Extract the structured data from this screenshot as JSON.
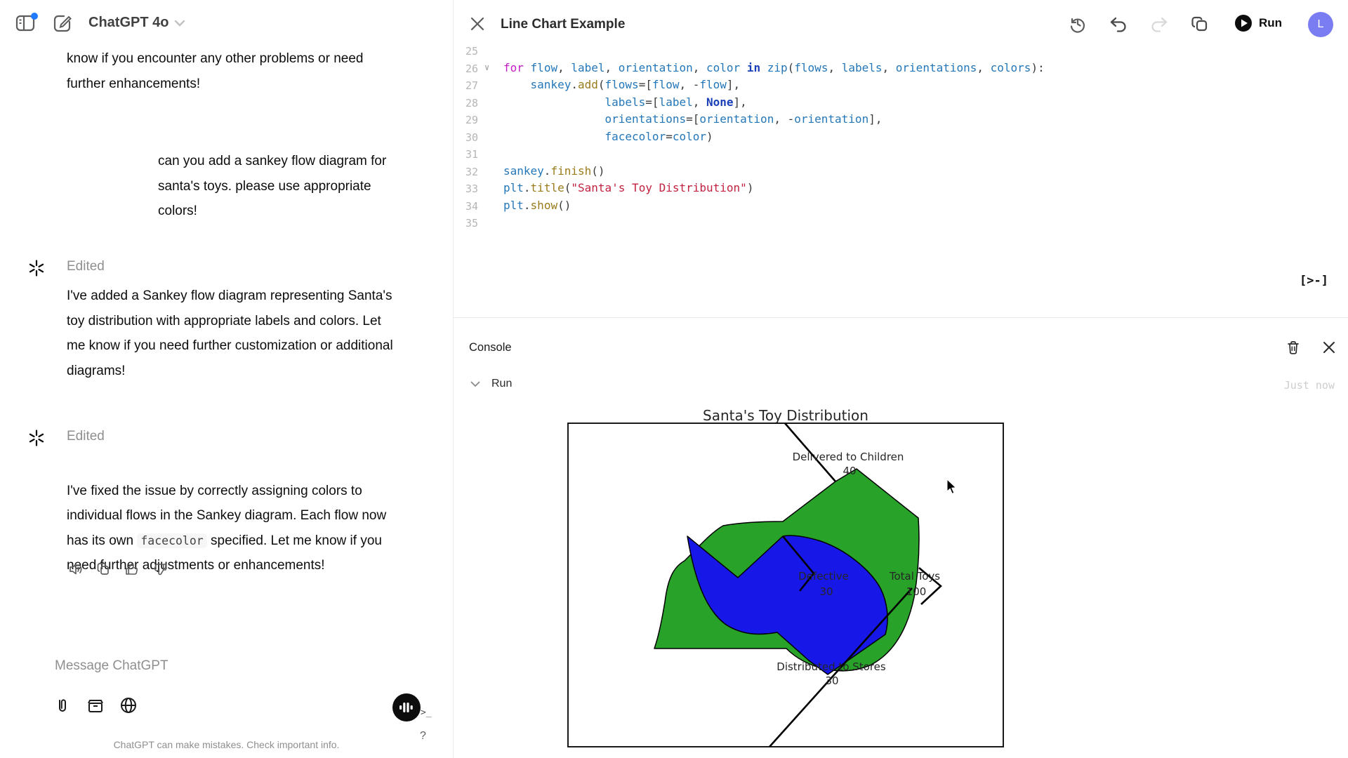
{
  "chat": {
    "header": {
      "model": "ChatGPT 4o"
    },
    "messages": {
      "m1": {
        "text": "know if you encounter any other problems or need\nfurther enhancements!"
      },
      "user": {
        "text": "can you add a sankey flow diagram for\nsanta's toys. please use appropriate\ncolors!"
      },
      "m2": {
        "edited": "Edited",
        "text": "I've added a Sankey flow diagram representing Santa's\ntoy distribution with appropriate labels and colors. Let\nme know if you need further customization or additional\ndiagrams!"
      },
      "m3": {
        "edited": "Edited",
        "pre": "I've fixed the issue by correctly assigning colors to\nindividual flows in the Sankey diagram. Each flow now\nhas its own ",
        "code": "facecolor",
        "post": " specified. Let me know if you\nneed further adjustments or enhancements!"
      }
    },
    "composer": {
      "placeholder": "Message ChatGPT"
    },
    "footer": {
      "disclaimer": "ChatGPT can make mistakes. Check important info.",
      "help": "?"
    }
  },
  "canvas": {
    "title": "Line Chart Example",
    "run_label": "Run",
    "console": {
      "title": "Console",
      "run_label": "Run",
      "timestamp": "Just now",
      "toggle_glyph": "[>-]"
    },
    "editor": {
      "lines": [
        {
          "n": 25,
          "fold": false,
          "tokens": []
        },
        {
          "n": 26,
          "fold": true,
          "tokens": [
            [
              "kw",
              "for"
            ],
            [
              "pl",
              " "
            ],
            [
              "id",
              "flow"
            ],
            [
              "pl",
              ", "
            ],
            [
              "id",
              "label"
            ],
            [
              "pl",
              ", "
            ],
            [
              "id",
              "orientation"
            ],
            [
              "pl",
              ", "
            ],
            [
              "id",
              "color"
            ],
            [
              "pl",
              " "
            ],
            [
              "kw2",
              "in"
            ],
            [
              "pl",
              " "
            ],
            [
              "id",
              "zip"
            ],
            [
              "pl",
              "("
            ],
            [
              "id",
              "flows"
            ],
            [
              "pl",
              ", "
            ],
            [
              "id",
              "labels"
            ],
            [
              "pl",
              ", "
            ],
            [
              "id",
              "orientations"
            ],
            [
              "pl",
              ", "
            ],
            [
              "id",
              "colors"
            ],
            [
              "pl",
              "):"
            ]
          ]
        },
        {
          "n": 27,
          "fold": false,
          "tokens": [
            [
              "pl",
              "    "
            ],
            [
              "id",
              "sankey"
            ],
            [
              "pl",
              "."
            ],
            [
              "fn",
              "add"
            ],
            [
              "pl",
              "("
            ],
            [
              "id",
              "flows"
            ],
            [
              "pl",
              "=["
            ],
            [
              "id",
              "flow"
            ],
            [
              "pl",
              ", -"
            ],
            [
              "id",
              "flow"
            ],
            [
              "pl",
              "],"
            ]
          ]
        },
        {
          "n": 28,
          "fold": false,
          "tokens": [
            [
              "pl",
              "               "
            ],
            [
              "id",
              "labels"
            ],
            [
              "pl",
              "=["
            ],
            [
              "id",
              "label"
            ],
            [
              "pl",
              ", "
            ],
            [
              "kw2",
              "None"
            ],
            [
              "pl",
              "],"
            ]
          ]
        },
        {
          "n": 29,
          "fold": false,
          "tokens": [
            [
              "pl",
              "               "
            ],
            [
              "id",
              "orientations"
            ],
            [
              "pl",
              "=["
            ],
            [
              "id",
              "orientation"
            ],
            [
              "pl",
              ", -"
            ],
            [
              "id",
              "orientation"
            ],
            [
              "pl",
              "],"
            ]
          ]
        },
        {
          "n": 30,
          "fold": false,
          "tokens": [
            [
              "pl",
              "               "
            ],
            [
              "id",
              "facecolor"
            ],
            [
              "pl",
              "="
            ],
            [
              "id",
              "color"
            ],
            [
              "pl",
              ")"
            ]
          ]
        },
        {
          "n": 31,
          "fold": false,
          "tokens": []
        },
        {
          "n": 32,
          "fold": false,
          "tokens": [
            [
              "id",
              "sankey"
            ],
            [
              "pl",
              "."
            ],
            [
              "fn",
              "finish"
            ],
            [
              "pl",
              "()"
            ]
          ]
        },
        {
          "n": 33,
          "fold": false,
          "tokens": [
            [
              "id",
              "plt"
            ],
            [
              "pl",
              "."
            ],
            [
              "fn",
              "title"
            ],
            [
              "pl",
              "("
            ],
            [
              "str",
              "\"Santa's Toy Distribution\""
            ],
            [
              "pl",
              ")"
            ]
          ]
        },
        {
          "n": 34,
          "fold": false,
          "tokens": [
            [
              "id",
              "plt"
            ],
            [
              "pl",
              "."
            ],
            [
              "fn",
              "show"
            ],
            [
              "pl",
              "()"
            ]
          ]
        },
        {
          "n": 35,
          "fold": false,
          "tokens": []
        }
      ]
    }
  },
  "user_account": {
    "initial": "L"
  },
  "chart_data": {
    "type": "sankey",
    "title": "Santa's Toy Distribution",
    "flows": [
      {
        "label": "Total Toys",
        "value": 100,
        "direction": "in"
      },
      {
        "label": "Delivered to Children",
        "value": 40,
        "direction": "out"
      },
      {
        "label": "Distributed to Stores",
        "value": 30,
        "direction": "out"
      },
      {
        "label": "Defective",
        "value": 30,
        "direction": "out"
      }
    ],
    "colors": {
      "green": "#28a228",
      "blue": "#1717e8",
      "edge": "#000000"
    },
    "layout": {
      "frame": "black box, white background",
      "title_position": "top-center"
    }
  }
}
